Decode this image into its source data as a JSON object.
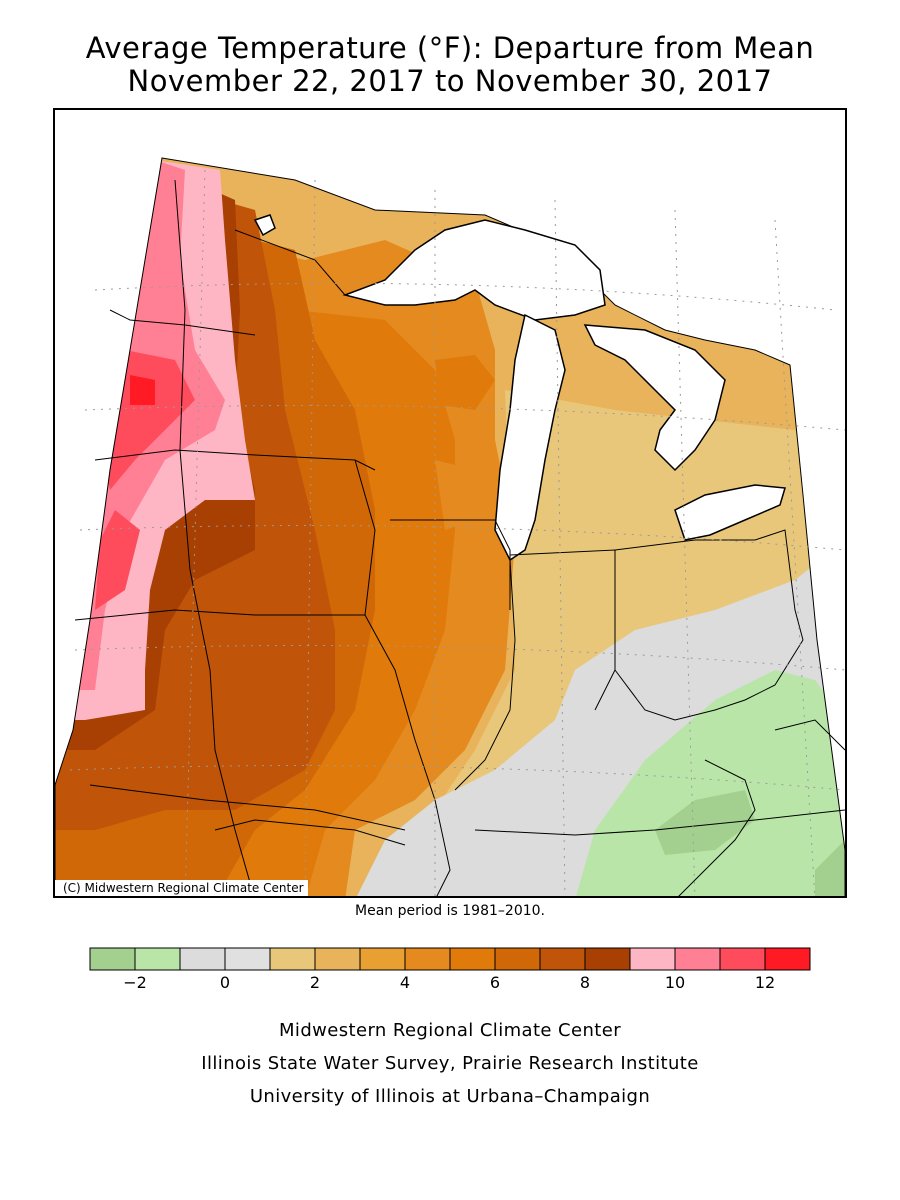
{
  "title": {
    "line1": "Average Temperature (°F): Departure from Mean",
    "line2": "November 22, 2017 to November 30, 2017"
  },
  "map": {
    "copyright": "(C) Midwestern Regional Climate Center",
    "mean_period": "Mean period is 1981–2010."
  },
  "legend": {
    "bins": [
      {
        "from": -3,
        "to": -2,
        "color": "#a3d08f"
      },
      {
        "from": -2,
        "to": -1,
        "color": "#b9e6a8"
      },
      {
        "from": -1,
        "to": 0,
        "color": "#dcdcdc"
      },
      {
        "from": 0,
        "to": 1,
        "color": "#e0e0e0"
      },
      {
        "from": 1,
        "to": 2,
        "color": "#e8c77a"
      },
      {
        "from": 2,
        "to": 3,
        "color": "#e8b35a"
      },
      {
        "from": 3,
        "to": 4,
        "color": "#e8a033"
      },
      {
        "from": 4,
        "to": 5,
        "color": "#e58a1e"
      },
      {
        "from": 5,
        "to": 6,
        "color": "#e07a0a"
      },
      {
        "from": 6,
        "to": 7,
        "color": "#d06808"
      },
      {
        "from": 7,
        "to": 8,
        "color": "#c05408"
      },
      {
        "from": 8,
        "to": 9,
        "color": "#a84004"
      },
      {
        "from": 9,
        "to": 10,
        "color": "#ffb6c4"
      },
      {
        "from": 10,
        "to": 11,
        "color": "#ff8094"
      },
      {
        "from": 11,
        "to": 12,
        "color": "#ff4c5c"
      },
      {
        "from": 12,
        "to": 13,
        "color": "#ff1a24"
      }
    ],
    "tick_labels": [
      "−2",
      "0",
      "2",
      "4",
      "6",
      "8",
      "10",
      "12"
    ]
  },
  "footer": {
    "line1": "Midwestern Regional Climate Center",
    "line2": "Illinois State Water Survey, Prairie Research Institute",
    "line3": "University of Illinois at Urbana–Champaign"
  }
}
